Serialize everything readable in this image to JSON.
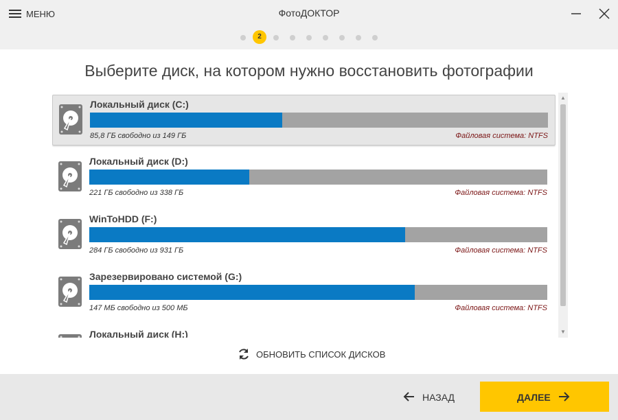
{
  "header": {
    "menu": "МЕНЮ",
    "title": "ФотоДОКТОР",
    "step": "2"
  },
  "heading": "Выберите диск, на котором нужно восстановить фотографии",
  "disks": [
    {
      "name": "Локальный диск (C:)",
      "free": "85,8 ГБ свободно из 149 ГБ",
      "fs": "Файловая система: NTFS",
      "used_percent": 42
    },
    {
      "name": "Локальный диск (D:)",
      "free": "221 ГБ свободно из 338 ГБ",
      "fs": "Файловая система: NTFS",
      "used_percent": 35
    },
    {
      "name": "WinToHDD (F:)",
      "free": "284 ГБ свободно из 931 ГБ",
      "fs": "Файловая система: NTFS",
      "used_percent": 69
    },
    {
      "name": "Зарезервировано системой (G:)",
      "free": "147 МБ свободно из 500 МБ",
      "fs": "Файловая система: NTFS",
      "used_percent": 71
    },
    {
      "name": "Локальный диск (H:)"
    }
  ],
  "refresh": "ОБНОВИТЬ СПИСОК ДИСКОВ",
  "footer": {
    "back": "НАЗАД",
    "next": "ДАЛЕЕ"
  }
}
